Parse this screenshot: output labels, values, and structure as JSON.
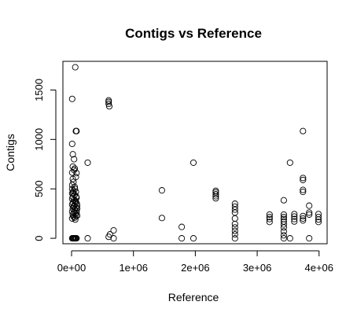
{
  "chart_data": {
    "type": "scatter",
    "title": "Contigs vs Reference",
    "xlabel": "Reference",
    "ylabel": "Contigs",
    "xlim": [
      -140000,
      4130000
    ],
    "ylim": [
      -55,
      1790
    ],
    "x_ticks": [
      {
        "value": 0,
        "label": "0e+00"
      },
      {
        "value": 1000000,
        "label": "1e+06"
      },
      {
        "value": 2000000,
        "label": "2e+06"
      },
      {
        "value": 3000000,
        "label": "3e+06"
      },
      {
        "value": 4000000,
        "label": "4e+06"
      }
    ],
    "y_ticks": [
      {
        "value": 0,
        "label": "0"
      },
      {
        "value": 500,
        "label": "500"
      },
      {
        "value": 1000,
        "label": "1000"
      },
      {
        "value": 1500,
        "label": "1500"
      }
    ],
    "series": [
      {
        "marker": "open-circle",
        "color": "#000000",
        "points": [
          [
            60000,
            1730
          ],
          [
            10000,
            1410
          ],
          [
            70000,
            1085
          ],
          [
            80000,
            1085
          ],
          [
            10000,
            955
          ],
          [
            20000,
            850
          ],
          [
            40000,
            800
          ],
          [
            20000,
            725
          ],
          [
            50000,
            705
          ],
          [
            40000,
            690
          ],
          [
            10000,
            665
          ],
          [
            80000,
            660
          ],
          [
            70000,
            620
          ],
          [
            20000,
            600
          ],
          [
            30000,
            570
          ],
          [
            10000,
            540
          ],
          [
            50000,
            520
          ],
          [
            10000,
            500
          ],
          [
            30000,
            480
          ],
          [
            70000,
            470
          ],
          [
            10000,
            455
          ],
          [
            50000,
            440
          ],
          [
            20000,
            420
          ],
          [
            80000,
            410
          ],
          [
            10000,
            400
          ],
          [
            40000,
            390
          ],
          [
            70000,
            370
          ],
          [
            20000,
            360
          ],
          [
            60000,
            350
          ],
          [
            10000,
            340
          ],
          [
            90000,
            330
          ],
          [
            30000,
            320
          ],
          [
            70000,
            310
          ],
          [
            20000,
            300
          ],
          [
            50000,
            290
          ],
          [
            80000,
            280
          ],
          [
            10000,
            270
          ],
          [
            40000,
            260
          ],
          [
            60000,
            250
          ],
          [
            20000,
            240
          ],
          [
            70000,
            230
          ],
          [
            30000,
            220
          ],
          [
            50000,
            210
          ],
          [
            10000,
            200
          ],
          [
            60000,
            190
          ],
          [
            80000,
            260
          ],
          [
            90000,
            230
          ],
          [
            85000,
            350
          ],
          [
            75000,
            420
          ],
          [
            90000,
            300
          ],
          [
            40000,
            330
          ],
          [
            60000,
            380
          ],
          [
            25000,
            460
          ],
          [
            55000,
            500
          ],
          [
            10000,
            0
          ],
          [
            20000,
            0
          ],
          [
            30000,
            0
          ],
          [
            40000,
            0
          ],
          [
            50000,
            0
          ],
          [
            60000,
            0
          ],
          [
            70000,
            0
          ],
          [
            80000,
            0
          ],
          [
            260000,
            765
          ],
          [
            260000,
            0
          ],
          [
            600000,
            1395
          ],
          [
            600000,
            1380
          ],
          [
            600000,
            1360
          ],
          [
            610000,
            1335
          ],
          [
            600000,
            15
          ],
          [
            620000,
            40
          ],
          [
            680000,
            80
          ],
          [
            680000,
            0
          ],
          [
            1460000,
            485
          ],
          [
            1460000,
            205
          ],
          [
            1780000,
            115
          ],
          [
            1780000,
            0
          ],
          [
            1970000,
            765
          ],
          [
            1970000,
            0
          ],
          [
            2330000,
            480
          ],
          [
            2330000,
            465
          ],
          [
            2330000,
            445
          ],
          [
            2330000,
            425
          ],
          [
            2330000,
            405
          ],
          [
            2640000,
            350
          ],
          [
            2640000,
            320
          ],
          [
            2640000,
            290
          ],
          [
            2640000,
            260
          ],
          [
            2640000,
            200
          ],
          [
            2640000,
            145
          ],
          [
            2640000,
            110
          ],
          [
            2640000,
            75
          ],
          [
            2640000,
            40
          ],
          [
            2640000,
            0
          ],
          [
            3200000,
            240
          ],
          [
            3200000,
            215
          ],
          [
            3200000,
            195
          ],
          [
            3200000,
            165
          ],
          [
            3430000,
            385
          ],
          [
            3430000,
            240
          ],
          [
            3430000,
            215
          ],
          [
            3430000,
            195
          ],
          [
            3430000,
            170
          ],
          [
            3430000,
            140
          ],
          [
            3430000,
            110
          ],
          [
            3430000,
            70
          ],
          [
            3430000,
            30
          ],
          [
            3430000,
            0
          ],
          [
            3530000,
            765
          ],
          [
            3530000,
            0
          ],
          [
            3600000,
            245
          ],
          [
            3600000,
            220
          ],
          [
            3600000,
            195
          ],
          [
            3600000,
            170
          ],
          [
            3740000,
            1085
          ],
          [
            3740000,
            610
          ],
          [
            3740000,
            590
          ],
          [
            3740000,
            490
          ],
          [
            3740000,
            470
          ],
          [
            3740000,
            225
          ],
          [
            3740000,
            200
          ],
          [
            3740000,
            180
          ],
          [
            3840000,
            330
          ],
          [
            3840000,
            260
          ],
          [
            3840000,
            240
          ],
          [
            3840000,
            0
          ],
          [
            3990000,
            245
          ],
          [
            3990000,
            215
          ],
          [
            3990000,
            190
          ],
          [
            3990000,
            165
          ]
        ]
      }
    ]
  }
}
